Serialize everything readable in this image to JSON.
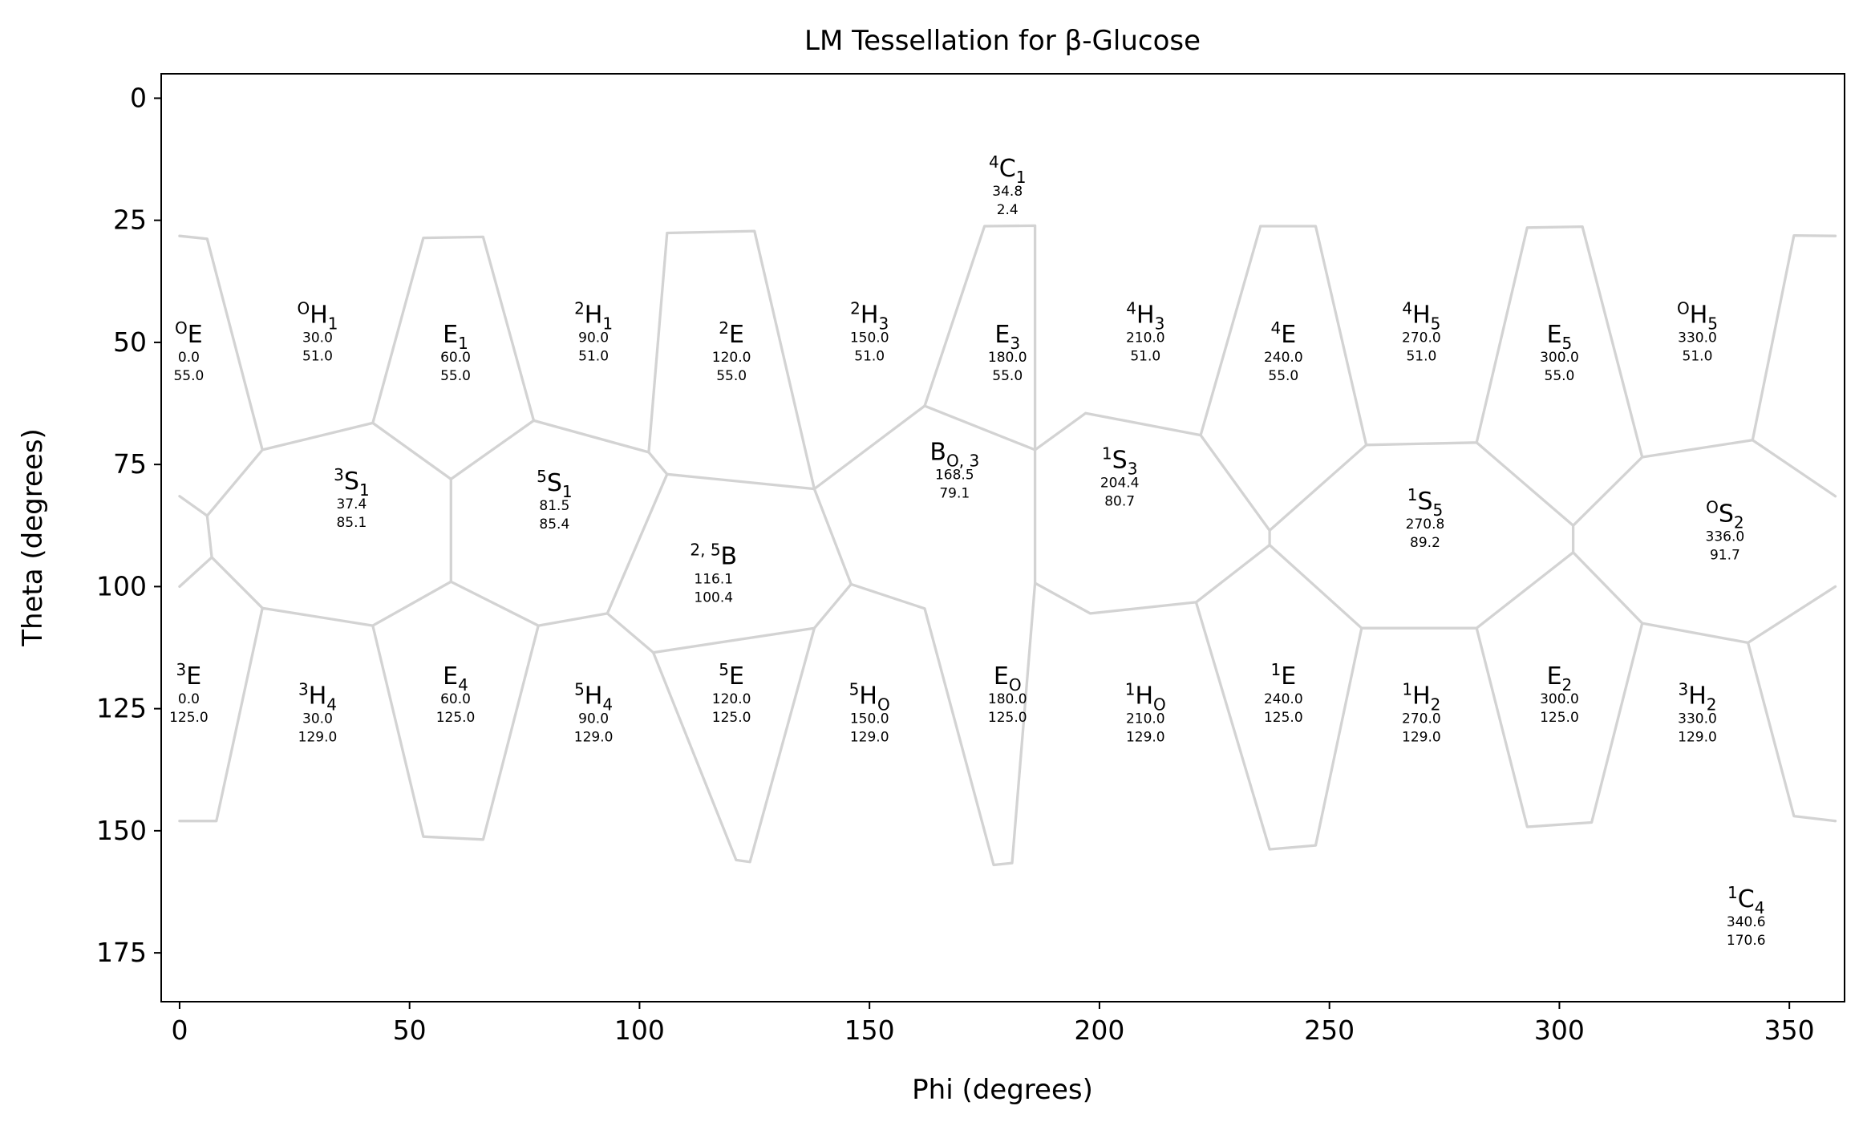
{
  "chart_data": {
    "type": "scatter",
    "title": "LM Tessellation for β-Glucose",
    "xlabel": "Phi (degrees)",
    "ylabel": "Theta (degrees)",
    "xlim": [
      -4,
      362
    ],
    "ylim": [
      185,
      -5
    ],
    "y_inverted": true,
    "xticks": [
      "0",
      "50",
      "100",
      "150",
      "200",
      "250",
      "300",
      "350"
    ],
    "xtick_values": [
      0,
      50,
      100,
      150,
      200,
      250,
      300,
      350
    ],
    "yticks": [
      "0",
      "25",
      "50",
      "75",
      "100",
      "125",
      "150",
      "175"
    ],
    "ytick_values": [
      0,
      25,
      50,
      75,
      100,
      125,
      150,
      175
    ],
    "grid": false,
    "edge_color": "#d3d3d3",
    "points": [
      {
        "base": "C",
        "sup": "4",
        "sub": "1",
        "phi": "34.8",
        "theta": "2.4",
        "x": 180,
        "y": 16
      },
      {
        "base": "E",
        "sup": "O",
        "sub": "",
        "phi": "0.0",
        "theta": "55.0",
        "x": 2,
        "y": 50
      },
      {
        "base": "H",
        "sup": "O",
        "sub": "1",
        "phi": "30.0",
        "theta": "51.0",
        "x": 30,
        "y": 46
      },
      {
        "base": "E",
        "sup": "",
        "sub": "1",
        "phi": "60.0",
        "theta": "55.0",
        "x": 60,
        "y": 50
      },
      {
        "base": "H",
        "sup": "2",
        "sub": "1",
        "phi": "90.0",
        "theta": "51.0",
        "x": 90,
        "y": 46
      },
      {
        "base": "E",
        "sup": "2",
        "sub": "",
        "phi": "120.0",
        "theta": "55.0",
        "x": 120,
        "y": 50
      },
      {
        "base": "H",
        "sup": "2",
        "sub": "3",
        "phi": "150.0",
        "theta": "51.0",
        "x": 150,
        "y": 46
      },
      {
        "base": "E",
        "sup": "",
        "sub": "3",
        "phi": "180.0",
        "theta": "55.0",
        "x": 180,
        "y": 50
      },
      {
        "base": "H",
        "sup": "4",
        "sub": "3",
        "phi": "210.0",
        "theta": "51.0",
        "x": 210,
        "y": 46
      },
      {
        "base": "E",
        "sup": "4",
        "sub": "",
        "phi": "240.0",
        "theta": "55.0",
        "x": 240,
        "y": 50
      },
      {
        "base": "H",
        "sup": "4",
        "sub": "5",
        "phi": "270.0",
        "theta": "51.0",
        "x": 270,
        "y": 46
      },
      {
        "base": "E",
        "sup": "",
        "sub": "5",
        "phi": "300.0",
        "theta": "55.0",
        "x": 300,
        "y": 50
      },
      {
        "base": "H",
        "sup": "O",
        "sub": "5",
        "phi": "330.0",
        "theta": "51.0",
        "x": 330,
        "y": 46
      },
      {
        "base": "S",
        "sup": "3",
        "sub": "1",
        "phi": "37.4",
        "theta": "85.1",
        "x": 37.4,
        "y": 80.1
      },
      {
        "base": "S",
        "sup": "5",
        "sub": "1",
        "phi": "81.5",
        "theta": "85.4",
        "x": 81.5,
        "y": 80.4
      },
      {
        "base": "B",
        "sup": "2, 5",
        "sub": "",
        "phi": "116.1",
        "theta": "100.4",
        "x": 116.1,
        "y": 95.4
      },
      {
        "base": "B",
        "sup": "",
        "sub": "O, 3",
        "phi": "168.5",
        "theta": "79.1",
        "x": 168.5,
        "y": 74.1
      },
      {
        "base": "S",
        "sup": "1",
        "sub": "3",
        "phi": "204.4",
        "theta": "80.7",
        "x": 204.4,
        "y": 75.7
      },
      {
        "base": "S",
        "sup": "1",
        "sub": "5",
        "phi": "270.8",
        "theta": "89.2",
        "x": 270.8,
        "y": 84.2
      },
      {
        "base": "S",
        "sup": "O",
        "sub": "2",
        "phi": "336.0",
        "theta": "91.7",
        "x": 336,
        "y": 86.7
      },
      {
        "base": "E",
        "sup": "3",
        "sub": "",
        "phi": "0.0",
        "theta": "125.0",
        "x": 2,
        "y": 120
      },
      {
        "base": "H",
        "sup": "3",
        "sub": "4",
        "phi": "30.0",
        "theta": "129.0",
        "x": 30,
        "y": 124
      },
      {
        "base": "E",
        "sup": "",
        "sub": "4",
        "phi": "60.0",
        "theta": "125.0",
        "x": 60,
        "y": 120
      },
      {
        "base": "H",
        "sup": "5",
        "sub": "4",
        "phi": "90.0",
        "theta": "129.0",
        "x": 90,
        "y": 124
      },
      {
        "base": "E",
        "sup": "5",
        "sub": "",
        "phi": "120.0",
        "theta": "125.0",
        "x": 120,
        "y": 120
      },
      {
        "base": "H",
        "sup": "5",
        "sub": "O",
        "phi": "150.0",
        "theta": "129.0",
        "x": 150,
        "y": 124
      },
      {
        "base": "E",
        "sup": "",
        "sub": "O",
        "phi": "180.0",
        "theta": "125.0",
        "x": 180,
        "y": 120
      },
      {
        "base": "H",
        "sup": "1",
        "sub": "O",
        "phi": "210.0",
        "theta": "129.0",
        "x": 210,
        "y": 124
      },
      {
        "base": "E",
        "sup": "1",
        "sub": "",
        "phi": "240.0",
        "theta": "125.0",
        "x": 240,
        "y": 120
      },
      {
        "base": "H",
        "sup": "1",
        "sub": "2",
        "phi": "270.0",
        "theta": "129.0",
        "x": 270,
        "y": 124
      },
      {
        "base": "E",
        "sup": "",
        "sub": "2",
        "phi": "300.0",
        "theta": "125.0",
        "x": 300,
        "y": 120
      },
      {
        "base": "H",
        "sup": "3",
        "sub": "2",
        "phi": "330.0",
        "theta": "129.0",
        "x": 330,
        "y": 124
      },
      {
        "base": "C",
        "sup": "1",
        "sub": "4",
        "phi": "340.6",
        "theta": "170.6",
        "x": 340.6,
        "y": 165.6
      }
    ],
    "edges": [
      [
        [
          0,
          28.2
        ],
        [
          6,
          28.8
        ],
        [
          18,
          72
        ],
        [
          42,
          66.5
        ],
        [
          53,
          28.6
        ],
        [
          66,
          28.4
        ],
        [
          77,
          66
        ],
        [
          102,
          72.5
        ],
        [
          106,
          27.6
        ],
        [
          125,
          27.2
        ],
        [
          138,
          80
        ],
        [
          162,
          63
        ],
        [
          175,
          26.2
        ],
        [
          186,
          26.1
        ],
        [
          186,
          72
        ],
        [
          197,
          64.5
        ],
        [
          222,
          69
        ],
        [
          235,
          26.2
        ],
        [
          247,
          26.2
        ],
        [
          258,
          71
        ],
        [
          282,
          70.5
        ],
        [
          293,
          26.5
        ],
        [
          305,
          26.3
        ],
        [
          318,
          73.5
        ],
        [
          342,
          70
        ],
        [
          351,
          28.1
        ],
        [
          360,
          28.2
        ]
      ],
      [
        [
          0,
          148
        ],
        [
          8,
          148
        ],
        [
          18,
          104.4
        ],
        [
          42,
          108
        ],
        [
          53,
          151.2
        ],
        [
          66,
          151.8
        ],
        [
          78,
          108
        ],
        [
          93,
          105.5
        ],
        [
          103,
          113.5
        ],
        [
          121,
          156
        ],
        [
          124,
          156.4
        ],
        [
          138,
          108.5
        ],
        [
          146,
          99.5
        ],
        [
          162,
          104.5
        ],
        [
          177,
          157
        ],
        [
          181,
          156.6
        ],
        [
          186,
          99.3
        ],
        [
          198,
          105.5
        ],
        [
          221,
          103.2
        ],
        [
          237,
          153.8
        ],
        [
          247,
          153
        ],
        [
          257,
          108.5
        ],
        [
          282,
          108.5
        ],
        [
          293,
          149.2
        ],
        [
          307,
          148.3
        ],
        [
          318,
          107.5
        ],
        [
          341,
          111.5
        ],
        [
          351,
          147
        ],
        [
          360,
          148
        ]
      ]
    ],
    "segments": [
      [
        [
          0,
          81.5
        ],
        [
          6,
          85.5
        ],
        [
          18,
          72
        ]
      ],
      [
        [
          6,
          85.5
        ],
        [
          7,
          94
        ],
        [
          18,
          104.4
        ]
      ],
      [
        [
          0,
          100
        ],
        [
          7,
          94
        ]
      ],
      [
        [
          42,
          66.5
        ],
        [
          59,
          78
        ],
        [
          77,
          66
        ]
      ],
      [
        [
          59,
          78
        ],
        [
          59,
          99
        ],
        [
          42,
          108
        ]
      ],
      [
        [
          59,
          99
        ],
        [
          78,
          108
        ]
      ],
      [
        [
          102,
          72.5
        ],
        [
          106,
          77
        ]
      ],
      [
        [
          106,
          77
        ],
        [
          93,
          105.5
        ]
      ],
      [
        [
          106,
          77
        ],
        [
          138,
          80
        ]
      ],
      [
        [
          103,
          113.5
        ],
        [
          138,
          108.5
        ]
      ],
      [
        [
          138,
          80
        ],
        [
          146,
          99.5
        ]
      ],
      [
        [
          186,
          72
        ],
        [
          162,
          63
        ]
      ],
      [
        [
          186,
          99.3
        ],
        [
          186,
          72
        ]
      ],
      [
        [
          222,
          69
        ],
        [
          237,
          88.5
        ],
        [
          258,
          71
        ]
      ],
      [
        [
          237,
          88.5
        ],
        [
          237,
          91.5
        ],
        [
          221,
          103.2
        ]
      ],
      [
        [
          237,
          91.5
        ],
        [
          257,
          108.5
        ]
      ],
      [
        [
          282,
          70.5
        ],
        [
          303,
          87.5
        ],
        [
          318,
          73.5
        ]
      ],
      [
        [
          303,
          87.5
        ],
        [
          303,
          93
        ],
        [
          282,
          108.5
        ]
      ],
      [
        [
          303,
          93
        ],
        [
          318,
          107.5
        ]
      ],
      [
        [
          342,
          70
        ],
        [
          360,
          81.5
        ]
      ],
      [
        [
          341,
          111.5
        ],
        [
          360,
          100
        ]
      ]
    ]
  }
}
